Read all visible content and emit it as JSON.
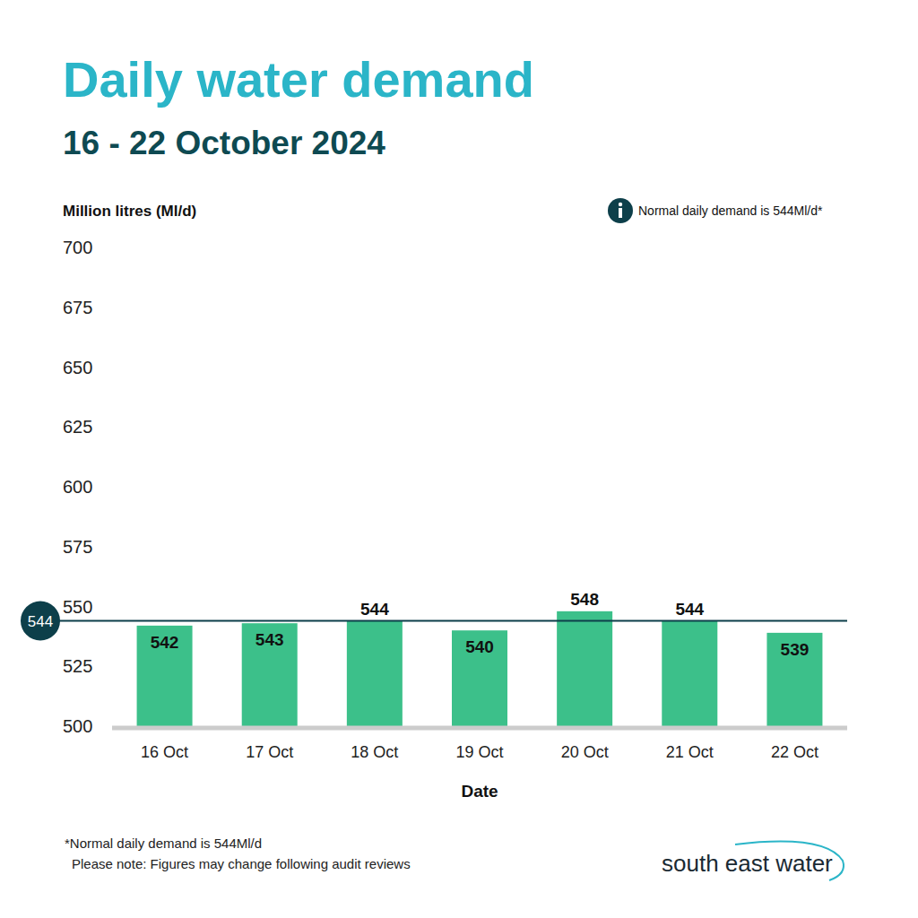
{
  "chart_data": {
    "type": "bar",
    "title": "Daily water demand",
    "subtitle": "16 - 22 October 2024",
    "y_label": "Million litres (Ml/d)",
    "x_label": "Date",
    "note": "Normal daily demand is 544Ml/d*",
    "reference_line": 544,
    "footnotes": [
      "*Normal daily demand is 544Ml/d",
      "Please note: Figures may change following audit reviews"
    ],
    "logo": "south east water",
    "categories": [
      "16 Oct",
      "17 Oct",
      "18 Oct",
      "19 Oct",
      "20 Oct",
      "21 Oct",
      "22 Oct"
    ],
    "values": [
      542,
      543,
      544,
      540,
      548,
      544,
      539
    ],
    "color": "#3cc08a",
    "ylim": [
      500,
      700
    ],
    "yticks": [
      500,
      525,
      550,
      575,
      600,
      625,
      650,
      675,
      700
    ],
    "grid": false,
    "data_labels": true
  }
}
